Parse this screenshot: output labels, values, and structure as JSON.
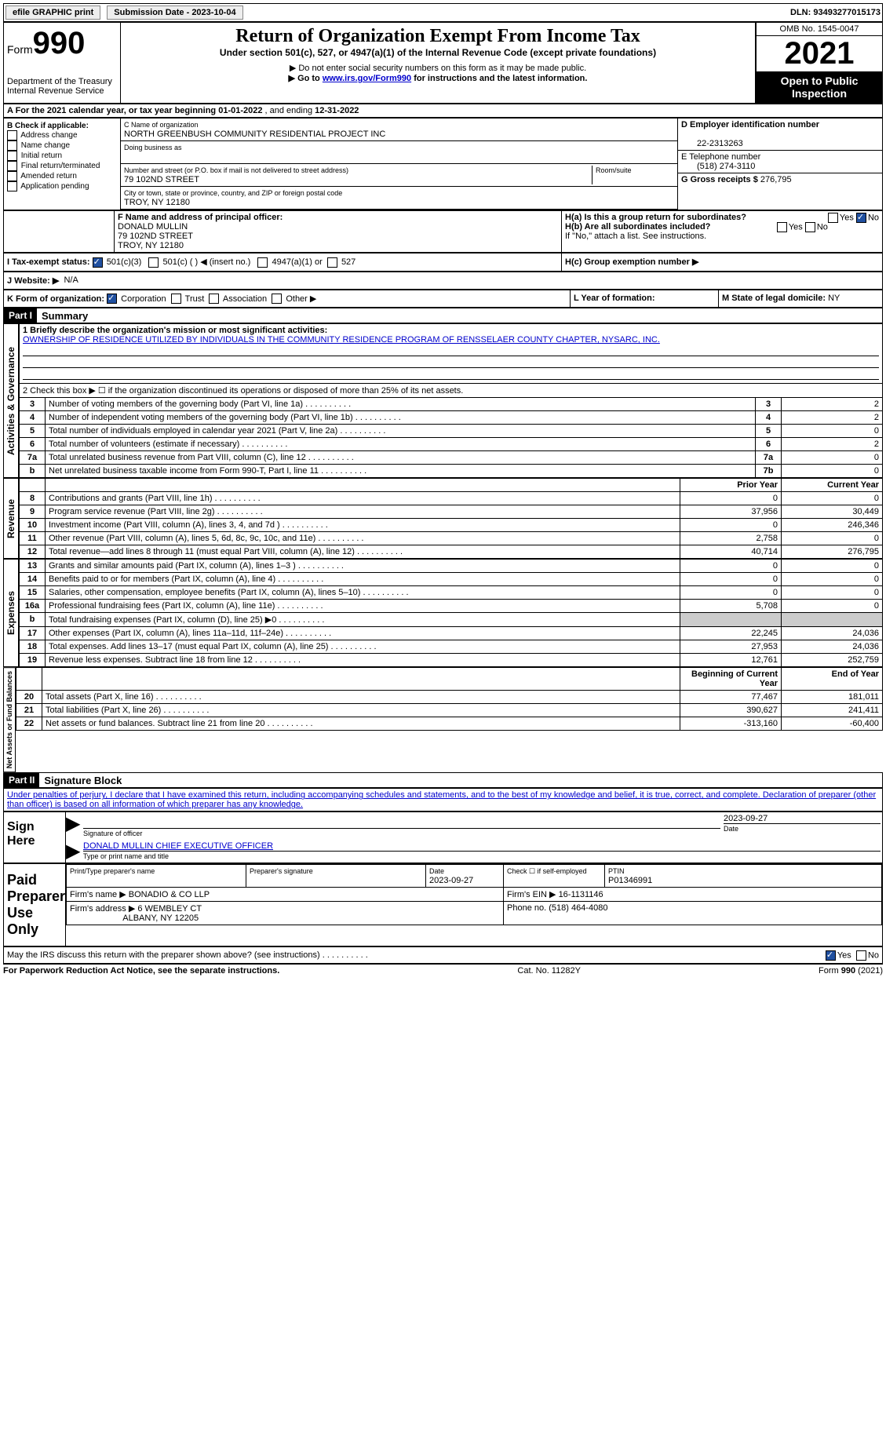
{
  "topbar": {
    "efile": "efile GRAPHIC print",
    "submission_label": "Submission Date - 2023-10-04",
    "dln_label": "DLN: 93493277015173"
  },
  "header": {
    "form_prefix": "Form",
    "form_number": "990",
    "dept": "Department of the Treasury",
    "irs": "Internal Revenue Service",
    "title": "Return of Organization Exempt From Income Tax",
    "subtitle": "Under section 501(c), 527, or 4947(a)(1) of the Internal Revenue Code (except private foundations)",
    "note1": "▶ Do not enter social security numbers on this form as it may be made public.",
    "note2_pre": "▶ Go to ",
    "note2_link": "www.irs.gov/Form990",
    "note2_post": " for instructions and the latest information.",
    "omb": "OMB No. 1545-0047",
    "year": "2021",
    "otp": "Open to Public Inspection"
  },
  "period": {
    "label_a": "A For the 2021 calendar year, or tax year beginning ",
    "begin": "01-01-2022",
    "mid": " , and ending ",
    "end": "12-31-2022"
  },
  "section_b": {
    "label": "B Check if applicable:",
    "opts": [
      "Address change",
      "Name change",
      "Initial return",
      "Final return/terminated",
      "Amended return",
      "Application pending"
    ]
  },
  "section_c": {
    "name_label": "C Name of organization",
    "name": "NORTH GREENBUSH COMMUNITY RESIDENTIAL PROJECT INC",
    "dba_label": "Doing business as",
    "street_label": "Number and street (or P.O. box if mail is not delivered to street address)",
    "room_label": "Room/suite",
    "street": "79 102ND STREET",
    "city_label": "City or town, state or province, country, and ZIP or foreign postal code",
    "city": "TROY, NY  12180"
  },
  "section_d": {
    "label": "D Employer identification number",
    "value": "22-2313263"
  },
  "section_e": {
    "label": "E Telephone number",
    "value": "(518) 274-3110"
  },
  "section_g": {
    "label": "G Gross receipts $ ",
    "value": "276,795"
  },
  "section_f": {
    "label": "F Name and address of principal officer:",
    "name": "DONALD MULLIN",
    "street": "79 102ND STREET",
    "city": "TROY, NY  12180"
  },
  "section_h": {
    "ha_label": "H(a)  Is this a group return for subordinates?",
    "yes": "Yes",
    "no": "No",
    "hb_label": "H(b)  Are all subordinates included?",
    "hb_note": "If \"No,\" attach a list. See instructions.",
    "hc_label": "H(c)  Group exemption number ▶"
  },
  "section_i": {
    "label": "I  Tax-exempt status:",
    "c3": "501(c)(3)",
    "c_generic": "501(c) (  ) ◀ (insert no.)",
    "a1": "4947(a)(1) or",
    "s527": "527"
  },
  "section_j": {
    "label": "J  Website: ▶",
    "value": "N/A"
  },
  "section_k": {
    "label": "K Form of organization:",
    "corp": "Corporation",
    "trust": "Trust",
    "assoc": "Association",
    "other": "Other ▶"
  },
  "section_l": {
    "label": "L Year of formation:"
  },
  "section_m": {
    "label": "M State of legal domicile: ",
    "value": "NY"
  },
  "part1": {
    "header": "Part I",
    "title": "Summary",
    "line1_label": "1  Briefly describe the organization's mission or most significant activities:",
    "line1_text": "OWNERSHIP OF RESIDENCE UTILIZED BY INDIVIDUALS IN THE COMMUNITY RESIDENCE PROGRAM OF RENSSELAER COUNTY CHAPTER, NYSARC, INC.",
    "line2": "2   Check this box ▶ ☐  if the organization discontinued its operations or disposed of more than 25% of its net assets.",
    "prior": "Prior Year",
    "current": "Current Year",
    "boy": "Beginning of Current Year",
    "eoy": "End of Year",
    "rows_ag": [
      {
        "n": "3",
        "l": "Number of voting members of the governing body (Part VI, line 1a)",
        "box": "3",
        "v": "2"
      },
      {
        "n": "4",
        "l": "Number of independent voting members of the governing body (Part VI, line 1b)",
        "box": "4",
        "v": "2"
      },
      {
        "n": "5",
        "l": "Total number of individuals employed in calendar year 2021 (Part V, line 2a)",
        "box": "5",
        "v": "0"
      },
      {
        "n": "6",
        "l": "Total number of volunteers (estimate if necessary)",
        "box": "6",
        "v": "2"
      },
      {
        "n": "7a",
        "l": "Total unrelated business revenue from Part VIII, column (C), line 12",
        "box": "7a",
        "v": "0"
      },
      {
        "n": "b",
        "l": "Net unrelated business taxable income from Form 990-T, Part I, line 11",
        "box": "7b",
        "v": "0"
      }
    ],
    "rows_rev": [
      {
        "n": "8",
        "l": "Contributions and grants (Part VIII, line 1h)",
        "p": "0",
        "c": "0"
      },
      {
        "n": "9",
        "l": "Program service revenue (Part VIII, line 2g)",
        "p": "37,956",
        "c": "30,449"
      },
      {
        "n": "10",
        "l": "Investment income (Part VIII, column (A), lines 3, 4, and 7d )",
        "p": "0",
        "c": "246,346"
      },
      {
        "n": "11",
        "l": "Other revenue (Part VIII, column (A), lines 5, 6d, 8c, 9c, 10c, and 11e)",
        "p": "2,758",
        "c": "0"
      },
      {
        "n": "12",
        "l": "Total revenue—add lines 8 through 11 (must equal Part VIII, column (A), line 12)",
        "p": "40,714",
        "c": "276,795"
      }
    ],
    "rows_exp": [
      {
        "n": "13",
        "l": "Grants and similar amounts paid (Part IX, column (A), lines 1–3 )",
        "p": "0",
        "c": "0"
      },
      {
        "n": "14",
        "l": "Benefits paid to or for members (Part IX, column (A), line 4)",
        "p": "0",
        "c": "0"
      },
      {
        "n": "15",
        "l": "Salaries, other compensation, employee benefits (Part IX, column (A), lines 5–10)",
        "p": "0",
        "c": "0"
      },
      {
        "n": "16a",
        "l": "Professional fundraising fees (Part IX, column (A), line 11e)",
        "p": "5,708",
        "c": "0"
      },
      {
        "n": "b",
        "l": "Total fundraising expenses (Part IX, column (D), line 25) ▶0",
        "p": "",
        "c": "",
        "shaded": true
      },
      {
        "n": "17",
        "l": "Other expenses (Part IX, column (A), lines 11a–11d, 11f–24e)",
        "p": "22,245",
        "c": "24,036"
      },
      {
        "n": "18",
        "l": "Total expenses. Add lines 13–17 (must equal Part IX, column (A), line 25)",
        "p": "27,953",
        "c": "24,036"
      },
      {
        "n": "19",
        "l": "Revenue less expenses. Subtract line 18 from line 12",
        "p": "12,761",
        "c": "252,759"
      }
    ],
    "rows_na": [
      {
        "n": "20",
        "l": "Total assets (Part X, line 16)",
        "p": "77,467",
        "c": "181,011"
      },
      {
        "n": "21",
        "l": "Total liabilities (Part X, line 26)",
        "p": "390,627",
        "c": "241,411"
      },
      {
        "n": "22",
        "l": "Net assets or fund balances. Subtract line 21 from line 20",
        "p": "-313,160",
        "c": "-60,400"
      }
    ],
    "vlabels": {
      "ag": "Activities & Governance",
      "rev": "Revenue",
      "exp": "Expenses",
      "na": "Net Assets or Fund Balances"
    }
  },
  "part2": {
    "header": "Part II",
    "title": "Signature Block",
    "decl": "Under penalties of perjury, I declare that I have examined this return, including accompanying schedules and statements, and to the best of my knowledge and belief, it is true, correct, and complete. Declaration of preparer (other than officer) is based on all information of which preparer has any knowledge.",
    "sign_here": "Sign Here",
    "sig_officer": "Signature of officer",
    "sig_date": "2023-09-27",
    "date_label": "Date",
    "officer_name": "DONALD MULLIN  CHIEF EXECUTIVE OFFICER",
    "type_label": "Type or print name and title",
    "paid": "Paid Preparer Use Only",
    "prep_name_label": "Print/Type preparer's name",
    "prep_sig_label": "Preparer's signature",
    "prep_date_label": "Date",
    "prep_date": "2023-09-27",
    "self_emp": "Check ☐ if self-employed",
    "ptin_label": "PTIN",
    "ptin": "P01346991",
    "firm_name_label": "Firm's name     ▶",
    "firm_name": "BONADIO & CO LLP",
    "firm_ein_label": "Firm's EIN ▶",
    "firm_ein": "16-1131146",
    "firm_addr_label": "Firm's address ▶",
    "firm_addr1": "6 WEMBLEY CT",
    "firm_addr2": "ALBANY, NY  12205",
    "firm_phone_label": "Phone no. ",
    "firm_phone": "(518) 464-4080",
    "discuss": "May the IRS discuss this return with the preparer shown above? (see instructions)",
    "yes": "Yes",
    "no": "No"
  },
  "footer": {
    "pra": "For Paperwork Reduction Act Notice, see the separate instructions.",
    "cat": "Cat. No. 11282Y",
    "form": "Form 990 (2021)"
  }
}
